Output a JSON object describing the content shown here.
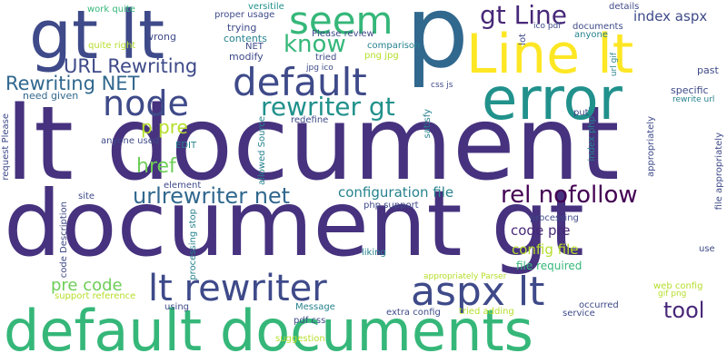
{
  "cloud": {
    "words": [
      {
        "text": "lt document",
        "color": "#46327e"
      },
      {
        "text": "document gt",
        "color": "#46327e"
      },
      {
        "text": "default documents",
        "color": "#35b779"
      },
      {
        "text": "gt lt",
        "color": "#3e4a89"
      },
      {
        "text": "p",
        "color": "#31688e"
      },
      {
        "text": "error",
        "color": "#21918c"
      },
      {
        "text": "Line lt",
        "color": "#fde725"
      },
      {
        "text": "seem",
        "color": "#35b779"
      },
      {
        "text": "gt Line",
        "color": "#482878"
      },
      {
        "text": "default",
        "color": "#3e4a89"
      },
      {
        "text": "node",
        "color": "#3e4a89"
      },
      {
        "text": "know",
        "color": "#35b779"
      },
      {
        "text": "rewriter gt",
        "color": "#21918c"
      },
      {
        "text": "URL Rewriting",
        "color": "#3e4a89"
      },
      {
        "text": "Rewriting NET",
        "color": "#31688e"
      },
      {
        "text": "p pre",
        "color": "#b5de2b"
      },
      {
        "text": "href",
        "color": "#6ece58"
      },
      {
        "text": "urlrewriter net",
        "color": "#31688e"
      },
      {
        "text": "rel nofollow",
        "color": "#440154"
      },
      {
        "text": "configuration file",
        "color": "#26828e"
      },
      {
        "text": "index aspx",
        "color": "#3e4a89"
      },
      {
        "text": "aspx lt",
        "color": "#3e4a89"
      },
      {
        "text": "lt rewriter",
        "color": "#3e4a89"
      },
      {
        "text": "pre code",
        "color": "#6ece58"
      },
      {
        "text": "tool",
        "color": "#482878"
      },
      {
        "text": "code pre",
        "color": "#482878"
      },
      {
        "text": "config file",
        "color": "#b5de2b"
      },
      {
        "text": "file required",
        "color": "#35b779"
      },
      {
        "text": "work quite",
        "color": "#35b779"
      },
      {
        "text": "quite right",
        "color": "#b5de2b"
      },
      {
        "text": "wrong",
        "color": "#3e4a89"
      },
      {
        "text": "need given",
        "color": "#31688e"
      },
      {
        "text": "proper usage",
        "color": "#3e4a89"
      },
      {
        "text": "versitile",
        "color": "#21918c"
      },
      {
        "text": "trying",
        "color": "#3e4a89"
      },
      {
        "text": "contents",
        "color": "#26828e"
      },
      {
        "text": "modify",
        "color": "#3e4a89"
      },
      {
        "text": "Please review",
        "color": "#3e4a89"
      },
      {
        "text": "jpg ico",
        "color": "#3e4a89"
      },
      {
        "text": "png jpg",
        "color": "#b5de2b"
      },
      {
        "text": "comparison",
        "color": "#26828e"
      },
      {
        "text": "details",
        "color": "#3e4a89"
      },
      {
        "text": "ico pdf",
        "color": "#3e4a89"
      },
      {
        "text": "documents",
        "color": "#3e4a89"
      },
      {
        "text": "anyone",
        "color": "#26828e"
      },
      {
        "text": "lot",
        "color": "#3e4a89"
      },
      {
        "text": "url gif",
        "color": "#26828e"
      },
      {
        "text": "past",
        "color": "#3e4a89"
      },
      {
        "text": "specific",
        "color": "#3e4a89"
      },
      {
        "text": "rewrite url",
        "color": "#26828e"
      },
      {
        "text": "css js",
        "color": "#3e4a89"
      },
      {
        "text": "redefine",
        "color": "#3e4a89"
      },
      {
        "text": "put",
        "color": "#3e4a89"
      },
      {
        "text": "satisfy",
        "color": "#26828e"
      },
      {
        "text": "index php",
        "color": "#26828e"
      },
      {
        "text": "appropriately",
        "color": "#3e4a89"
      },
      {
        "text": "file appropriately",
        "color": "#3e4a89"
      },
      {
        "text": "anyone used",
        "color": "#3e4a89"
      },
      {
        "text": "EDIT",
        "color": "#26828e"
      },
      {
        "text": "element",
        "color": "#3e4a89"
      },
      {
        "text": "site",
        "color": "#3e4a89"
      },
      {
        "text": "request Please",
        "color": "#3e4a89"
      },
      {
        "text": "code Description",
        "color": "#3e4a89"
      },
      {
        "text": "allowed Source",
        "color": "#26828e"
      },
      {
        "text": "tried",
        "color": "#3e4a89"
      },
      {
        "text": "NET",
        "color": "#3e4a89"
      },
      {
        "text": "php support",
        "color": "#3e4a89"
      },
      {
        "text": "processing",
        "color": "#3e4a89"
      },
      {
        "text": "processing stop",
        "color": "#26828e"
      },
      {
        "text": "liking",
        "color": "#26828e"
      },
      {
        "text": "use",
        "color": "#3e4a89"
      },
      {
        "text": "appropriately Parser",
        "color": "#b5de2b"
      },
      {
        "text": "support reference",
        "color": "#b5de2b"
      },
      {
        "text": "using",
        "color": "#3e4a89"
      },
      {
        "text": "Message",
        "color": "#26828e"
      },
      {
        "text": "pdf css",
        "color": "#3e4a89"
      },
      {
        "text": "extra config",
        "color": "#3e4a89"
      },
      {
        "text": "tried adding",
        "color": "#b5de2b"
      },
      {
        "text": "service",
        "color": "#3e4a89"
      },
      {
        "text": "occurred",
        "color": "#3e4a89"
      },
      {
        "text": "suggestion",
        "color": "#b5de2b"
      },
      {
        "text": "web config",
        "color": "#b5de2b"
      },
      {
        "text": "gif png",
        "color": "#b5de2b"
      }
    ]
  }
}
